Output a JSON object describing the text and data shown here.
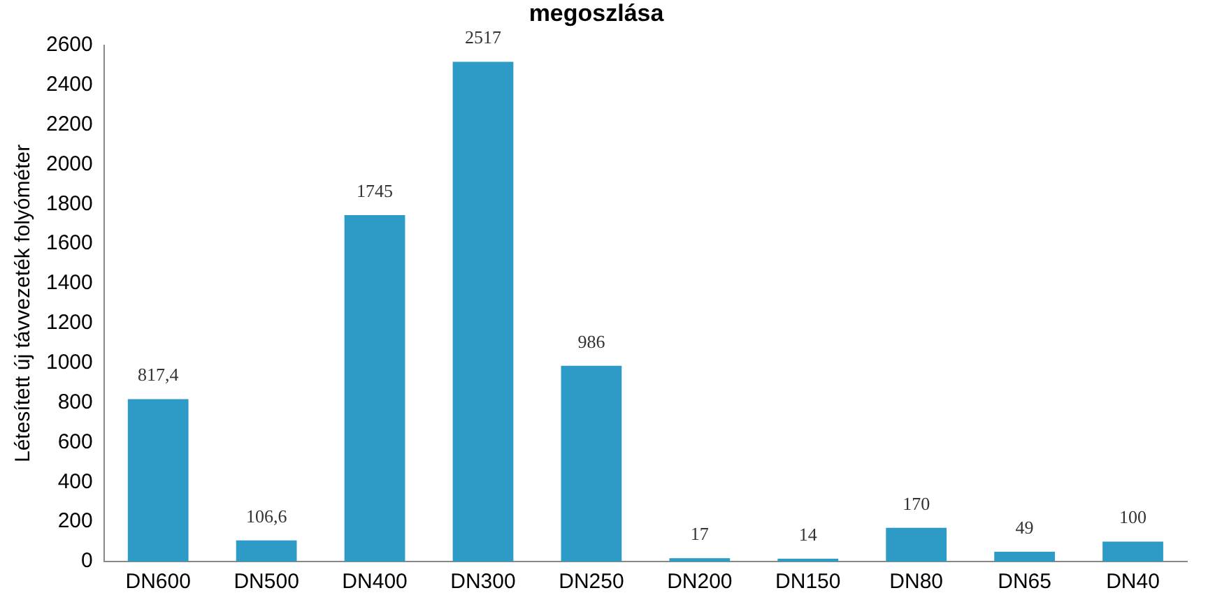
{
  "chart_data": {
    "type": "bar",
    "title": "megoszlása",
    "ylabel": "Létesített új távvezeték folyóméter",
    "categories": [
      "DN600",
      "DN500",
      "DN400",
      "DN300",
      "DN250",
      "DN200",
      "DN150",
      "DN80",
      "DN65",
      "DN40"
    ],
    "values": [
      817.4,
      106.6,
      1745,
      2517,
      986,
      17,
      14,
      170,
      49,
      100
    ],
    "value_labels": [
      "817,4",
      "106,6",
      "1745",
      "2517",
      "986",
      "17",
      "14",
      "170",
      "49",
      "100"
    ],
    "color": "#2e9bc6",
    "ylim": [
      0,
      2600
    ],
    "yticks": [
      0,
      200,
      400,
      600,
      800,
      1000,
      1200,
      1400,
      1600,
      1800,
      2000,
      2200,
      2400,
      2600
    ],
    "grid": false,
    "legend": false
  }
}
